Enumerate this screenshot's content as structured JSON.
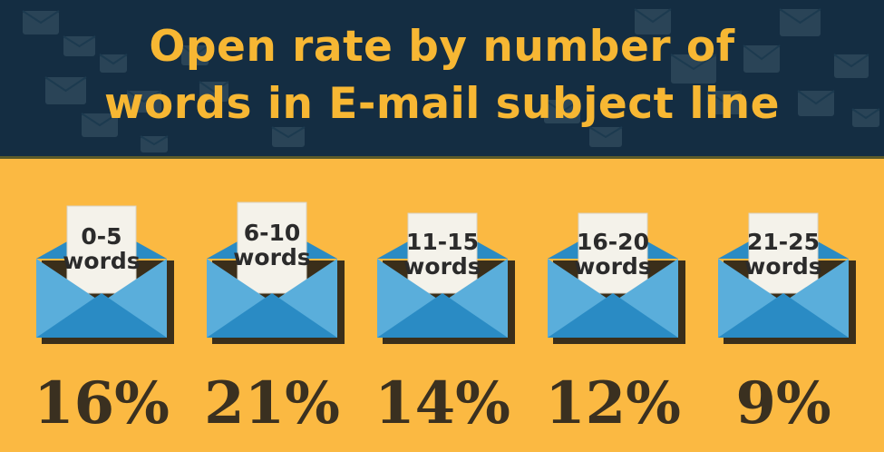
{
  "title_line1": "Open rate by number of",
  "title_line2": "words in E-mail subject line",
  "colors": {
    "header_bg": "#142d42",
    "title": "#f7b733",
    "background": "#fbb942",
    "envelope_light": "#5aaedb",
    "envelope_dark": "#2a8bc4",
    "shadow": "#3a2e1a",
    "paper": "#f4f2ea"
  },
  "chart_data": {
    "type": "table",
    "title": "Open rate by number of words in E-mail subject line",
    "categories": [
      "0-5 words",
      "6-10 words",
      "11-15 words",
      "16-20 words",
      "21-25 words"
    ],
    "items": [
      {
        "range": "0-5",
        "unit": "words",
        "value_label": "16%",
        "value": 16
      },
      {
        "range": "6-10",
        "unit": "words",
        "value_label": "21%",
        "value": 21
      },
      {
        "range": "11-15",
        "unit": "words",
        "value_label": "14%",
        "value": 14
      },
      {
        "range": "16-20",
        "unit": "words",
        "value_label": "12%",
        "value": 12
      },
      {
        "range": "21-25",
        "unit": "words",
        "value_label": "9%",
        "value": 9
      }
    ]
  }
}
